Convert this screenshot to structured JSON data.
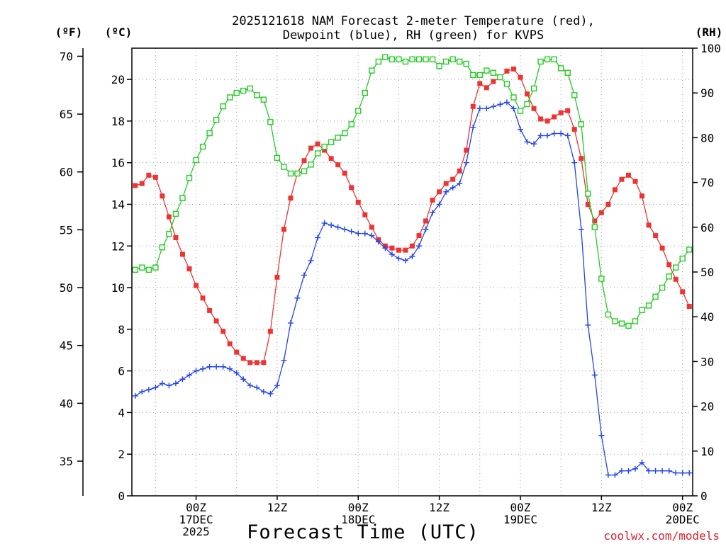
{
  "chart_data": {
    "type": "line",
    "title": [
      "2025121618 NAM Forecast 2-meter Temperature (red),",
      "Dewpoint (blue), RH (green) for KVPS"
    ],
    "xlabel": "Forecast Time (UTC)",
    "unit_labels": {
      "fahrenheit": "(ºF)",
      "celsius": "(ºC)",
      "rh": "(RH)"
    },
    "credit": "coolwx.com/models",
    "x_range_hours": [
      -9.5,
      73.5
    ],
    "x_ticks": [
      {
        "hour": 0,
        "lines": [
          "00Z",
          "17DEC",
          "2025"
        ]
      },
      {
        "hour": 12,
        "lines": [
          "12Z"
        ]
      },
      {
        "hour": 24,
        "lines": [
          "00Z",
          "18DEC"
        ]
      },
      {
        "hour": 36,
        "lines": [
          "12Z"
        ]
      },
      {
        "hour": 48,
        "lines": [
          "00Z",
          "19DEC"
        ]
      },
      {
        "hour": 60,
        "lines": [
          "12Z"
        ]
      },
      {
        "hour": 72,
        "lines": [
          "00Z",
          "20DEC"
        ]
      }
    ],
    "y_celsius": {
      "range": [
        0,
        21.5
      ],
      "ticks": [
        "0",
        "2",
        "4",
        "6",
        "8",
        "10",
        "12",
        "14",
        "16",
        "18",
        "20"
      ]
    },
    "y_fahrenheit": {
      "ticks": [
        "35",
        "40",
        "45",
        "50",
        "55",
        "60",
        "65",
        "70"
      ]
    },
    "y_rh": {
      "range": [
        0,
        100
      ],
      "ticks": [
        "0",
        "10",
        "20",
        "30",
        "40",
        "50",
        "60",
        "70",
        "80",
        "90",
        "100"
      ]
    },
    "series": [
      {
        "name": "Temperature",
        "unit": "°C",
        "color": "#ee3333",
        "marker": "filled-square",
        "values": [
          14.9,
          15.0,
          15.4,
          15.3,
          14.4,
          13.4,
          12.4,
          11.6,
          10.9,
          10.1,
          9.5,
          8.9,
          8.4,
          7.9,
          7.3,
          6.9,
          6.6,
          6.4,
          6.4,
          6.4,
          7.9,
          10.5,
          12.8,
          14.3,
          15.5,
          16.1,
          16.7,
          16.9,
          16.6,
          16.2,
          15.9,
          15.5,
          14.8,
          14.1,
          13.5,
          12.9,
          12.3,
          12.0,
          11.9,
          11.8,
          11.8,
          12.0,
          12.5,
          13.2,
          14.2,
          14.6,
          15.0,
          15.2,
          15.6,
          16.6,
          18.7,
          19.8,
          19.6,
          19.9,
          20.1,
          20.4,
          20.5,
          20.1,
          19.3,
          18.6,
          18.1,
          18.0,
          18.2,
          18.4,
          18.5,
          17.6,
          16.2,
          14.0,
          13.2,
          13.6,
          14.0,
          14.7,
          15.2,
          15.4,
          15.1,
          14.4,
          13.0,
          12.5,
          11.9,
          11.1,
          10.4,
          9.8,
          9.1
        ]
      },
      {
        "name": "Dewpoint",
        "unit": "°C",
        "color": "#2244ee",
        "marker": "plus",
        "values": [
          4.8,
          5.0,
          5.1,
          5.2,
          5.4,
          5.3,
          5.4,
          5.6,
          5.8,
          6.0,
          6.1,
          6.2,
          6.2,
          6.2,
          6.1,
          5.9,
          5.6,
          5.3,
          5.2,
          5.0,
          4.9,
          5.3,
          6.5,
          8.3,
          9.5,
          10.6,
          11.3,
          12.4,
          13.1,
          13.0,
          12.9,
          12.8,
          12.7,
          12.6,
          12.6,
          12.5,
          12.2,
          11.9,
          11.6,
          11.4,
          11.3,
          11.5,
          12.0,
          12.8,
          13.6,
          14.0,
          14.6,
          14.8,
          15.0,
          16.0,
          17.7,
          18.6,
          18.6,
          18.7,
          18.8,
          18.9,
          18.6,
          17.6,
          17.0,
          16.9,
          17.3,
          17.3,
          17.4,
          17.4,
          17.3,
          16.0,
          12.8,
          8.2,
          5.8,
          2.9,
          1.0,
          1.0,
          1.2,
          1.2,
          1.3,
          1.6,
          1.2,
          1.2,
          1.2,
          1.2,
          1.1,
          1.1,
          1.1
        ]
      },
      {
        "name": "RH",
        "unit": "%",
        "color": "#22cc22",
        "marker": "open-square",
        "values": [
          50.5,
          51,
          50.5,
          51,
          55.5,
          58.5,
          63,
          66.5,
          71,
          75,
          78,
          81,
          84,
          87,
          89,
          90,
          90.5,
          91,
          89.5,
          88.5,
          83.5,
          75.5,
          73.5,
          72,
          72,
          72.5,
          74,
          76.5,
          78,
          79,
          80,
          81,
          83,
          86,
          90,
          95,
          97,
          98,
          97.5,
          97.5,
          97,
          97.5,
          97.5,
          97.5,
          97.5,
          96,
          97,
          97.5,
          97,
          96.5,
          94,
          94,
          95,
          94.5,
          93.5,
          92,
          89,
          86,
          87.5,
          91,
          97,
          97.5,
          97.5,
          95.5,
          94.5,
          89.5,
          83,
          67.5,
          60,
          48.5,
          40.5,
          39,
          38.5,
          38,
          39,
          41.5,
          42.5,
          44.5,
          46.5,
          49,
          51,
          53,
          55
        ]
      }
    ]
  }
}
